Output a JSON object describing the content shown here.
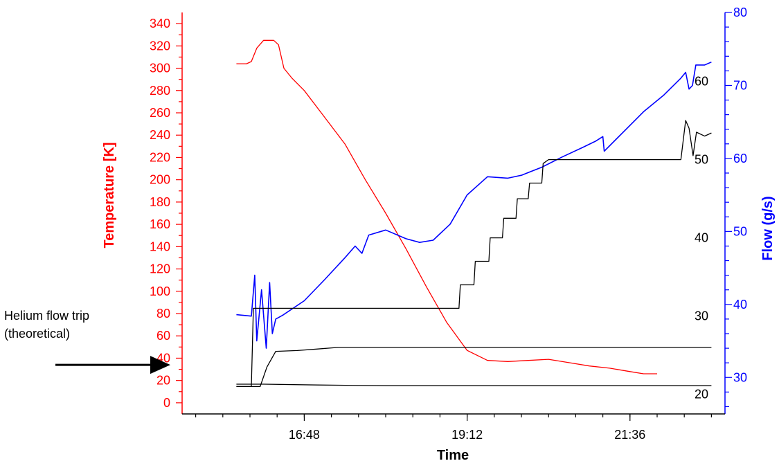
{
  "chart_data": {
    "type": "line",
    "xlabel": "Time",
    "x_axis": {
      "tick_labels": [
        "16:48",
        "19:12",
        "21:36"
      ],
      "range_hours": [
        15.0,
        23.0
      ],
      "major_ticks_hours": [
        16.8,
        19.2,
        21.6
      ]
    },
    "y_left": {
      "label": "Temperature [K]",
      "range": [
        -10,
        350
      ],
      "ticks": [
        0,
        20,
        40,
        60,
        80,
        100,
        120,
        140,
        160,
        180,
        200,
        220,
        240,
        260,
        280,
        300,
        320,
        340
      ],
      "color": "#ff0000"
    },
    "y_right_black": {
      "range": [
        17.5,
        68.8
      ],
      "ticks": [
        20,
        30,
        40,
        50,
        60
      ],
      "color": "#000000"
    },
    "y_right_blue": {
      "label": "Flow (g/s)",
      "range": [
        25,
        80
      ],
      "ticks": [
        30,
        40,
        50,
        60,
        70,
        80
      ],
      "color": "#0000ff"
    },
    "annotation": {
      "lines": [
        "Helium flow trip",
        "(theoretical)"
      ],
      "arrow_value_temperature": 34
    },
    "series": [
      {
        "axis": "left",
        "color": "#ff0000",
        "points": [
          [
            15.8,
            304
          ],
          [
            15.95,
            304
          ],
          [
            16.02,
            306
          ],
          [
            16.1,
            318
          ],
          [
            16.2,
            325
          ],
          [
            16.35,
            325
          ],
          [
            16.42,
            321
          ],
          [
            16.5,
            300
          ],
          [
            16.62,
            291
          ],
          [
            16.8,
            280
          ],
          [
            17.1,
            256
          ],
          [
            17.4,
            232
          ],
          [
            17.7,
            200
          ],
          [
            18.0,
            170
          ],
          [
            18.3,
            138
          ],
          [
            18.6,
            104
          ],
          [
            18.9,
            72
          ],
          [
            19.2,
            47
          ],
          [
            19.5,
            38
          ],
          [
            19.8,
            37
          ],
          [
            20.1,
            38
          ],
          [
            20.4,
            39
          ],
          [
            20.7,
            36
          ],
          [
            21.0,
            33
          ],
          [
            21.3,
            31
          ],
          [
            21.6,
            28
          ],
          [
            21.8,
            26
          ],
          [
            22.0,
            26
          ]
        ]
      },
      {
        "axis": "blue",
        "color": "#0000ff",
        "points": [
          [
            15.8,
            38.6
          ],
          [
            16.02,
            38.4
          ],
          [
            16.07,
            44
          ],
          [
            16.1,
            35
          ],
          [
            16.17,
            42
          ],
          [
            16.24,
            34
          ],
          [
            16.29,
            43
          ],
          [
            16.33,
            36
          ],
          [
            16.38,
            38
          ],
          [
            16.48,
            38.5
          ],
          [
            16.8,
            40.5
          ],
          [
            17.1,
            43.4
          ],
          [
            17.4,
            46.4
          ],
          [
            17.55,
            48
          ],
          [
            17.65,
            47
          ],
          [
            17.75,
            49.5
          ],
          [
            18.0,
            50.2
          ],
          [
            18.3,
            49.0
          ],
          [
            18.5,
            48.5
          ],
          [
            18.7,
            48.8
          ],
          [
            18.95,
            51
          ],
          [
            19.2,
            55
          ],
          [
            19.5,
            57.5
          ],
          [
            19.8,
            57.3
          ],
          [
            20.0,
            57.7
          ],
          [
            20.3,
            58.8
          ],
          [
            20.6,
            60.2
          ],
          [
            20.9,
            61.5
          ],
          [
            21.1,
            62.4
          ],
          [
            21.2,
            63.0
          ],
          [
            21.22,
            61.0
          ],
          [
            21.5,
            63.6
          ],
          [
            21.8,
            66.4
          ],
          [
            22.1,
            68.7
          ],
          [
            22.35,
            71.0
          ],
          [
            22.42,
            71.8
          ],
          [
            22.47,
            69.5
          ],
          [
            22.52,
            70.0
          ],
          [
            22.57,
            72.8
          ],
          [
            22.7,
            72.8
          ],
          [
            22.8,
            73.2
          ]
        ]
      },
      {
        "axis": "black",
        "color": "#000000",
        "points": [
          [
            15.8,
            21.0
          ],
          [
            16.02,
            21.0
          ],
          [
            16.05,
            31.0
          ],
          [
            19.08,
            31.0
          ],
          [
            19.1,
            34.0
          ],
          [
            19.3,
            34.0
          ],
          [
            19.32,
            37.0
          ],
          [
            19.52,
            37.0
          ],
          [
            19.54,
            40.0
          ],
          [
            19.72,
            40.0
          ],
          [
            19.74,
            42.5
          ],
          [
            19.92,
            42.5
          ],
          [
            19.94,
            45.0
          ],
          [
            20.1,
            45.0
          ],
          [
            20.12,
            47.0
          ],
          [
            20.3,
            47.0
          ],
          [
            20.32,
            49.5
          ],
          [
            20.4,
            50.0
          ],
          [
            22.35,
            50.0
          ],
          [
            22.42,
            55.0
          ],
          [
            22.47,
            54.0
          ],
          [
            22.53,
            50.5
          ],
          [
            22.58,
            53.5
          ],
          [
            22.7,
            53.0
          ],
          [
            22.8,
            53.4
          ]
        ]
      },
      {
        "axis": "black",
        "color": "#000000",
        "points": [
          [
            15.8,
            21.0
          ],
          [
            16.15,
            21.0
          ],
          [
            16.25,
            23.5
          ],
          [
            16.38,
            25.5
          ],
          [
            16.7,
            25.6
          ],
          [
            17.0,
            25.8
          ],
          [
            17.3,
            26.0
          ],
          [
            17.6,
            26.0
          ],
          [
            18.5,
            26.0
          ],
          [
            20.0,
            26.0
          ],
          [
            21.0,
            26.0
          ],
          [
            22.0,
            26.0
          ],
          [
            22.8,
            26.0
          ]
        ]
      },
      {
        "axis": "black",
        "color": "#000000",
        "points": [
          [
            15.8,
            21.3
          ],
          [
            16.2,
            21.3
          ],
          [
            17.0,
            21.2
          ],
          [
            18.0,
            21.1
          ],
          [
            19.0,
            21.1
          ],
          [
            20.0,
            21.1
          ],
          [
            21.0,
            21.1
          ],
          [
            22.0,
            21.1
          ],
          [
            22.8,
            21.1
          ]
        ]
      }
    ]
  }
}
